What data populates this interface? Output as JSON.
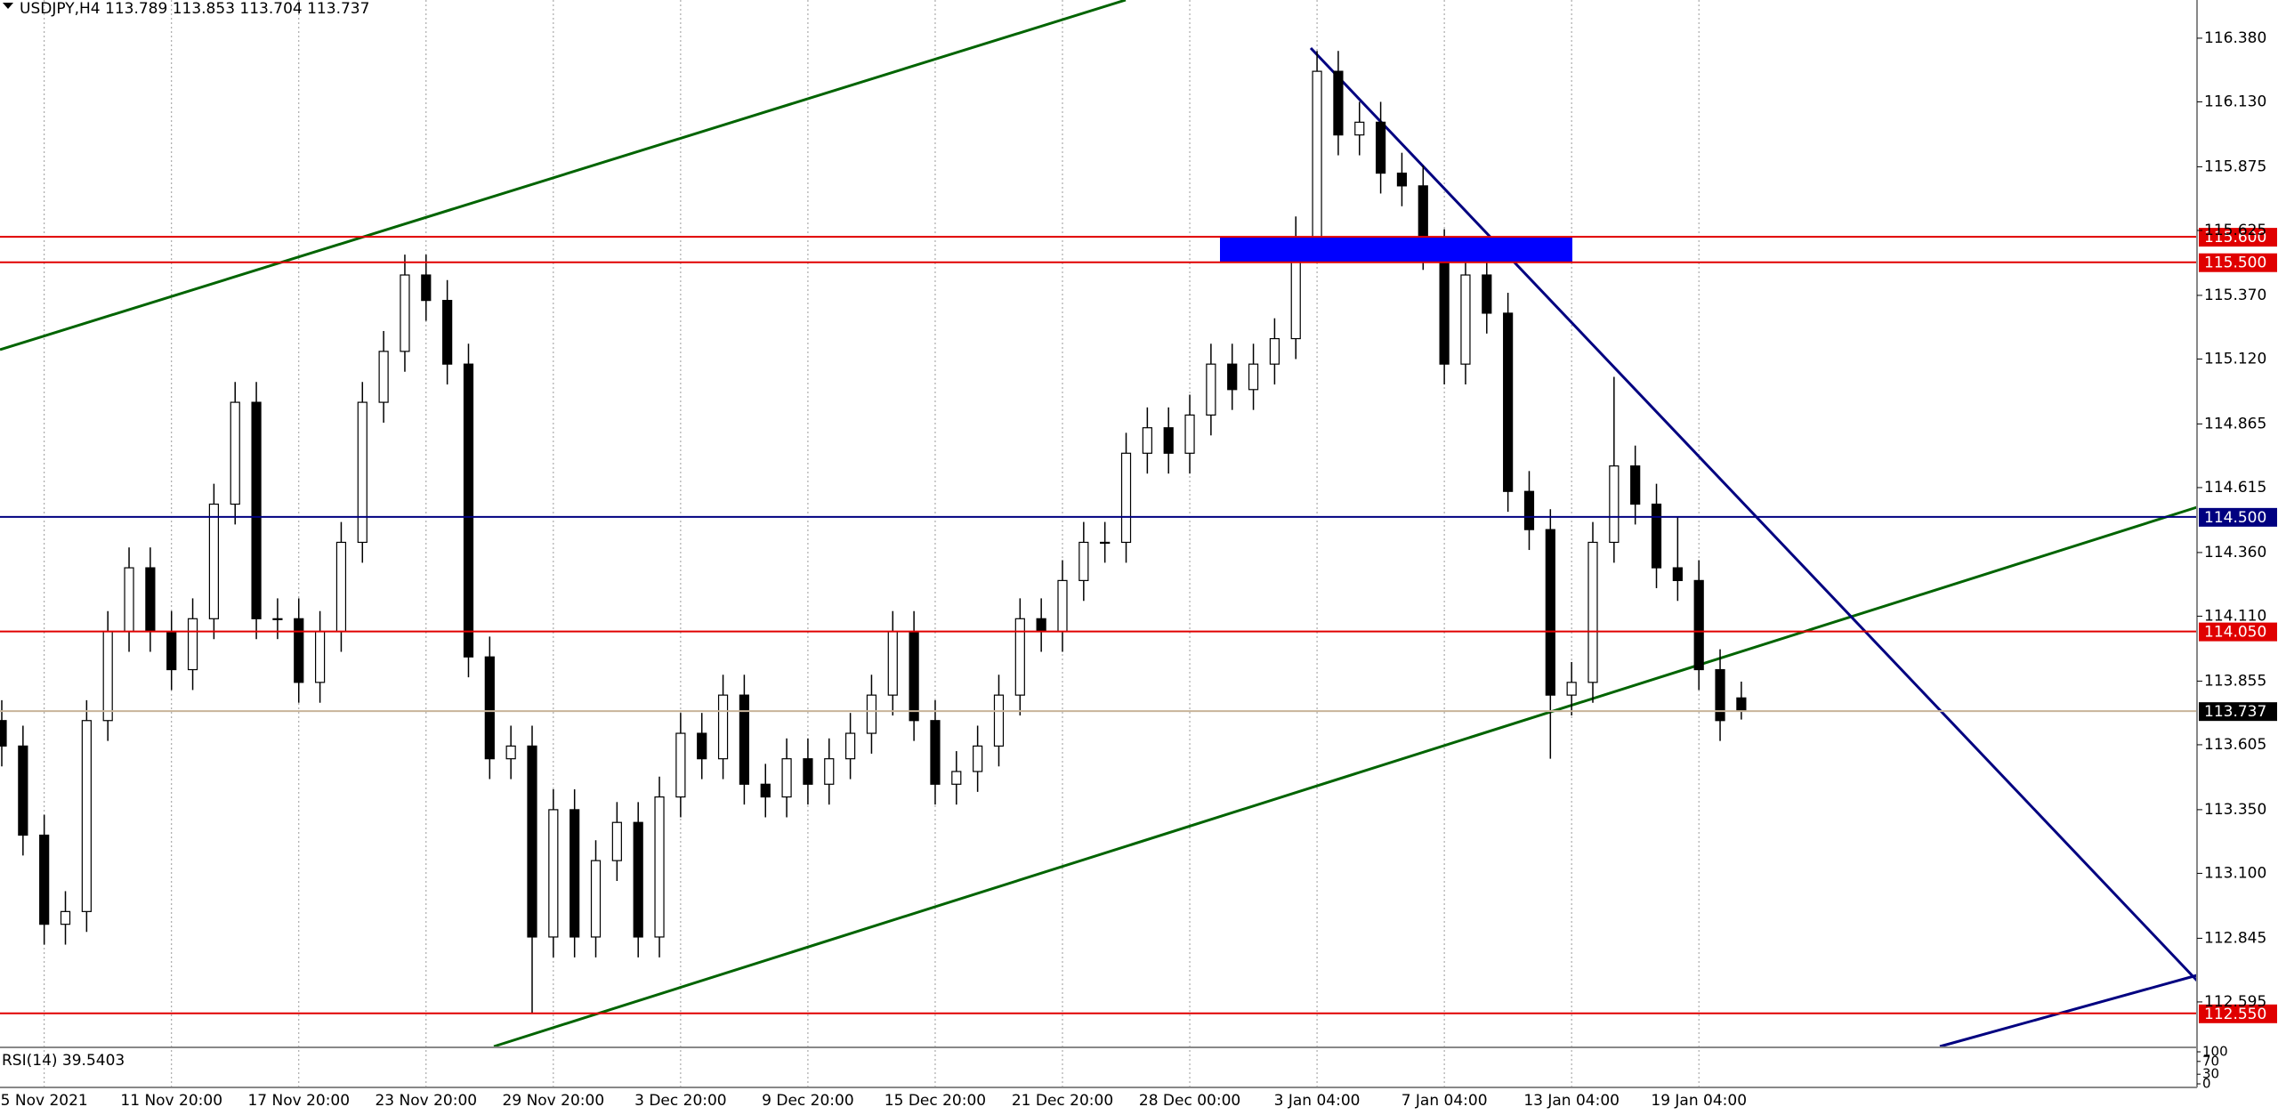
{
  "chart_data": {
    "type": "candlestick",
    "title": "USDJPY,H4  113.789 113.853 113.704 113.737",
    "categories": [
      null,
      null,
      "5 Nov 2021",
      null,
      null,
      null,
      null,
      null,
      "11 Nov 20:00",
      null,
      null,
      null,
      null,
      null,
      "17 Nov 20:00",
      null,
      null,
      null,
      null,
      null,
      "23 Nov 20:00",
      null,
      null,
      null,
      null,
      null,
      "29 Nov 20:00",
      null,
      null,
      null,
      null,
      null,
      "3 Dec 20:00",
      null,
      null,
      null,
      null,
      null,
      "9 Dec 20:00",
      null,
      null,
      null,
      null,
      null,
      "15 Dec 20:00",
      null,
      null,
      null,
      null,
      null,
      "21 Dec 20:00",
      null,
      null,
      null,
      null,
      null,
      "28 Dec 00:00",
      null,
      null,
      null,
      null,
      null,
      "3 Jan 04:00",
      null,
      null,
      null,
      null,
      null,
      "7 Jan 04:00",
      null,
      null,
      null,
      null,
      null,
      "13 Jan 04:00",
      null,
      null,
      null,
      null,
      null,
      "19 Jan 04:00",
      null,
      null
    ],
    "open": [
      113.7,
      113.6,
      113.25,
      112.9,
      112.95,
      113.7,
      114.05,
      114.3,
      114.05,
      113.9,
      114.1,
      114.55,
      114.95,
      114.1,
      114.1,
      113.85,
      114.05,
      114.4,
      114.95,
      115.15,
      115.45,
      115.35,
      115.1,
      113.95,
      113.55,
      113.6,
      112.85,
      113.35,
      112.85,
      113.15,
      113.3,
      112.85,
      113.4,
      113.65,
      113.55,
      113.8,
      113.45,
      113.4,
      113.55,
      113.45,
      113.55,
      113.65,
      113.8,
      114.05,
      113.7,
      113.45,
      113.5,
      113.6,
      113.8,
      114.1,
      114.05,
      114.25,
      114.4,
      114.4,
      114.75,
      114.85,
      114.75,
      114.9,
      115.1,
      115.0,
      115.1,
      115.2,
      115.6,
      116.25,
      116.0,
      116.05,
      115.85,
      115.8,
      115.55,
      115.1,
      115.45,
      115.3,
      114.6,
      114.45,
      113.8,
      113.85,
      114.4,
      114.7,
      114.55,
      114.3,
      114.25,
      113.9,
      113.789
    ],
    "high": [
      113.78,
      113.68,
      113.33,
      113.03,
      113.78,
      114.13,
      114.38,
      114.38,
      114.13,
      114.18,
      114.63,
      115.03,
      115.03,
      114.18,
      114.18,
      114.13,
      114.48,
      115.03,
      115.23,
      115.53,
      115.53,
      115.43,
      115.18,
      114.03,
      113.68,
      113.68,
      113.43,
      113.43,
      113.23,
      113.38,
      113.38,
      113.48,
      113.73,
      113.73,
      113.88,
      113.88,
      113.53,
      113.63,
      113.63,
      113.63,
      113.73,
      113.88,
      114.13,
      114.13,
      113.78,
      113.58,
      113.68,
      113.88,
      114.18,
      114.18,
      114.33,
      114.48,
      114.48,
      114.83,
      114.93,
      114.93,
      114.98,
      115.18,
      115.18,
      115.18,
      115.28,
      115.68,
      116.33,
      116.33,
      116.13,
      116.13,
      115.93,
      115.88,
      115.63,
      115.53,
      115.53,
      115.38,
      114.68,
      114.53,
      113.93,
      114.48,
      115.05,
      114.78,
      114.63,
      114.5,
      114.33,
      113.98,
      113.853
    ],
    "low": [
      113.52,
      113.17,
      112.82,
      112.82,
      112.87,
      113.62,
      113.97,
      113.97,
      113.82,
      113.82,
      114.02,
      114.47,
      114.02,
      114.02,
      113.77,
      113.77,
      113.97,
      114.32,
      114.87,
      115.07,
      115.27,
      115.02,
      113.87,
      113.47,
      113.47,
      112.55,
      112.77,
      112.77,
      112.77,
      113.07,
      112.77,
      112.77,
      113.32,
      113.47,
      113.47,
      113.37,
      113.32,
      113.32,
      113.37,
      113.37,
      113.47,
      113.57,
      113.72,
      113.62,
      113.37,
      113.37,
      113.42,
      113.52,
      113.72,
      113.97,
      113.97,
      114.17,
      114.32,
      114.32,
      114.67,
      114.67,
      114.67,
      114.82,
      114.92,
      114.92,
      115.02,
      115.12,
      115.52,
      115.92,
      115.92,
      115.77,
      115.72,
      115.47,
      115.02,
      115.02,
      115.22,
      114.52,
      114.37,
      113.55,
      113.72,
      113.77,
      114.32,
      114.47,
      114.22,
      114.17,
      113.82,
      113.62,
      113.704
    ],
    "close": [
      113.6,
      113.25,
      112.9,
      112.95,
      113.7,
      114.05,
      114.3,
      114.05,
      113.9,
      114.1,
      114.55,
      114.95,
      114.1,
      114.1,
      113.85,
      114.05,
      114.4,
      114.95,
      115.15,
      115.45,
      115.35,
      115.1,
      113.95,
      113.55,
      113.6,
      112.85,
      113.35,
      112.85,
      113.15,
      113.3,
      112.85,
      113.4,
      113.65,
      113.55,
      113.8,
      113.45,
      113.4,
      113.55,
      113.45,
      113.55,
      113.65,
      113.8,
      114.05,
      113.7,
      113.45,
      113.5,
      113.6,
      113.8,
      114.1,
      114.05,
      114.25,
      114.4,
      114.4,
      114.75,
      114.85,
      114.75,
      114.9,
      115.1,
      115.0,
      115.1,
      115.2,
      115.6,
      116.25,
      116.0,
      116.05,
      115.85,
      115.8,
      115.55,
      115.1,
      115.45,
      115.3,
      114.6,
      114.45,
      113.8,
      113.85,
      114.4,
      114.7,
      114.55,
      114.3,
      114.25,
      113.9,
      113.7,
      113.737
    ],
    "up_color": "#ffffff",
    "down_color": "#000000",
    "ylim": [
      112.42,
      116.53
    ],
    "yticks": [
      {
        "value": 116.38,
        "label": "116.380"
      },
      {
        "value": 116.13,
        "label": "116.130"
      },
      {
        "value": 115.875,
        "label": "115.875"
      },
      {
        "value": 115.625,
        "label": "115.625"
      },
      {
        "value": 115.37,
        "label": "115.370"
      },
      {
        "value": 115.12,
        "label": "115.120"
      },
      {
        "value": 114.865,
        "label": "114.865"
      },
      {
        "value": 114.615,
        "label": "114.615"
      },
      {
        "value": 114.36,
        "label": "114.360"
      },
      {
        "value": 114.11,
        "label": "114.110"
      },
      {
        "value": 113.855,
        "label": "113.855"
      },
      {
        "value": 113.605,
        "label": "113.605"
      },
      {
        "value": 113.35,
        "label": "113.350"
      },
      {
        "value": 113.1,
        "label": "113.100"
      },
      {
        "value": 112.845,
        "label": "112.845"
      },
      {
        "value": 112.595,
        "label": "112.595"
      }
    ],
    "grid": true,
    "levels": [
      {
        "value": 115.6,
        "label": "115.600",
        "color": "#e00000"
      },
      {
        "value": 115.5,
        "label": "115.500",
        "color": "#e00000"
      },
      {
        "value": 114.5,
        "label": "114.500",
        "color": "#000080"
      },
      {
        "value": 114.05,
        "label": "114.050",
        "color": "#e00000"
      },
      {
        "value": 112.55,
        "label": "112.550",
        "color": "#e00000"
      }
    ],
    "last_price": {
      "value": 113.737,
      "label": "113.737",
      "color": "#c8b49a"
    },
    "rsi": {
      "label": "RSI(14) 39.5403",
      "ylim": [
        0,
        100
      ],
      "yticks": [
        100,
        70,
        30,
        0
      ]
    }
  }
}
